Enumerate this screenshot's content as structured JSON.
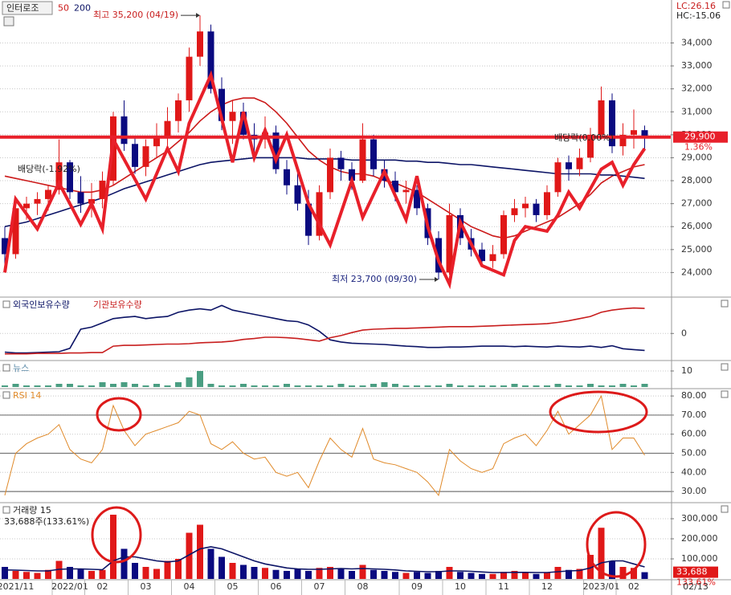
{
  "chart_data": [
    {
      "type": "candlestick",
      "title": "인터로조",
      "categories": [
        null,
        "2021/11",
        null,
        null,
        null,
        null,
        "2022/01",
        null,
        null,
        "02",
        null,
        null,
        null,
        "03",
        null,
        null,
        null,
        "04",
        null,
        null,
        null,
        "05",
        null,
        null,
        null,
        "06",
        null,
        null,
        null,
        "07",
        null,
        null,
        null,
        "08",
        null,
        null,
        null,
        null,
        "09",
        null,
        null,
        null,
        "10",
        null,
        null,
        null,
        "11",
        null,
        null,
        null,
        "12",
        null,
        null,
        null,
        null,
        "2023/01",
        null,
        null,
        "02",
        null
      ],
      "last_date": "02/13",
      "open": [
        25500,
        24800,
        26800,
        27000,
        27200,
        27600,
        28800,
        27500,
        27000,
        27200,
        28000,
        30800,
        29600,
        28600,
        29500,
        29900,
        30600,
        31500,
        33400,
        34500,
        32000,
        30600,
        31000,
        30000,
        29800,
        30100,
        28500,
        27800,
        27000,
        25600,
        27500,
        29000,
        28500,
        28000,
        29800,
        28500,
        28000,
        27500,
        27600,
        26800,
        25500,
        24000,
        26500,
        25500,
        25000,
        24500,
        24800,
        26500,
        26800,
        27000,
        26500,
        27500,
        28800,
        28500,
        29000,
        30000,
        31500,
        29500,
        30000,
        30200
      ],
      "high": [
        26000,
        27000,
        27300,
        27500,
        27800,
        29800,
        28900,
        28200,
        27900,
        28400,
        31000,
        31500,
        29900,
        29800,
        30500,
        31200,
        31800,
        33800,
        35200,
        34800,
        32500,
        31500,
        31400,
        30500,
        30800,
        30400,
        28900,
        28600,
        27600,
        27800,
        29400,
        29300,
        28800,
        30500,
        30000,
        28900,
        28400,
        28000,
        27800,
        27000,
        25800,
        27000,
        26800,
        25900,
        25300,
        25200,
        26700,
        27200,
        27300,
        27200,
        27800,
        29000,
        29100,
        29400,
        30300,
        32100,
        31800,
        30500,
        31100,
        30400
      ],
      "low": [
        24200,
        24600,
        26300,
        26500,
        26700,
        27400,
        27200,
        26600,
        26400,
        26800,
        27800,
        29300,
        28300,
        28200,
        29000,
        29400,
        30100,
        31000,
        33000,
        31800,
        30200,
        29600,
        29800,
        29200,
        29400,
        28300,
        27400,
        26700,
        25200,
        25400,
        27200,
        28000,
        27600,
        27900,
        28200,
        27700,
        27100,
        27000,
        26500,
        25200,
        23700,
        23900,
        25200,
        24700,
        24300,
        24200,
        24600,
        26200,
        26400,
        26200,
        26300,
        27300,
        28000,
        28200,
        28800,
        29800,
        29200,
        29100,
        29400,
        29300
      ],
      "close": [
        24800,
        26800,
        27000,
        27200,
        27600,
        28800,
        27500,
        27000,
        27200,
        28000,
        30800,
        29600,
        28600,
        29500,
        29900,
        30600,
        31500,
        33400,
        34500,
        32000,
        30600,
        31000,
        30000,
        29800,
        30100,
        28500,
        27800,
        27000,
        25600,
        27500,
        29000,
        28500,
        28000,
        29800,
        28500,
        28000,
        27500,
        27600,
        26800,
        25500,
        24000,
        26500,
        25500,
        25000,
        24500,
        24800,
        26500,
        26800,
        27000,
        26500,
        27500,
        28800,
        28500,
        29000,
        30000,
        31500,
        29500,
        30000,
        30200,
        29900
      ],
      "up_color": "#e01818",
      "down_color": "#0a0a80",
      "series": [
        {
          "name": "50",
          "color": "#cc1a1a",
          "values": [
            28200,
            28100,
            28000,
            27900,
            27800,
            27700,
            27600,
            27500,
            27500,
            27600,
            27800,
            28100,
            28400,
            28700,
            29000,
            29300,
            29700,
            30100,
            30600,
            31000,
            31300,
            31500,
            31600,
            31600,
            31400,
            31000,
            30500,
            29900,
            29300,
            28900,
            28600,
            28400,
            28300,
            28300,
            28200,
            28000,
            27900,
            27700,
            27500,
            27200,
            26900,
            26600,
            26300,
            26000,
            25800,
            25600,
            25500,
            25600,
            25800,
            26000,
            26200,
            26400,
            26700,
            27000,
            27400,
            27900,
            28200,
            28400,
            28600,
            28700
          ]
        },
        {
          "name": "200",
          "color": "#0c1466",
          "values": [
            26000,
            26100,
            26200,
            26350,
            26500,
            26650,
            26800,
            26950,
            27100,
            27250,
            27450,
            27650,
            27800,
            27950,
            28100,
            28250,
            28400,
            28550,
            28700,
            28800,
            28850,
            28900,
            28950,
            29000,
            29000,
            29000,
            29000,
            29000,
            28950,
            28950,
            28950,
            28950,
            28900,
            28900,
            28900,
            28900,
            28900,
            28850,
            28850,
            28800,
            28800,
            28750,
            28700,
            28700,
            28650,
            28600,
            28550,
            28500,
            28450,
            28400,
            28350,
            28300,
            28300,
            28300,
            28300,
            28250,
            28250,
            28200,
            28150,
            28100
          ]
        }
      ],
      "trend": {
        "color": "#e8202a",
        "x": [
          0,
          1,
          3,
          5,
          7,
          8,
          9,
          10,
          13,
          15,
          16,
          17,
          19,
          21,
          22,
          23,
          24,
          25,
          26,
          28,
          30,
          32,
          33,
          35,
          37,
          38,
          39,
          40,
          41,
          42,
          44,
          46,
          47,
          48,
          50,
          51,
          52,
          53,
          55,
          56,
          57,
          58,
          59
        ],
        "values": [
          24000,
          27200,
          25900,
          27900,
          26100,
          27000,
          25900,
          29800,
          27200,
          29400,
          28400,
          30500,
          32600,
          28800,
          31000,
          29000,
          30200,
          28900,
          30000,
          27000,
          25200,
          28000,
          26400,
          28400,
          26300,
          28200,
          26000,
          24500,
          23500,
          26200,
          24300,
          23900,
          25400,
          26000,
          25800,
          26500,
          27500,
          26800,
          28500,
          28800,
          27800,
          28700,
          29400
        ]
      },
      "hline": {
        "value": 29900,
        "label": "29,900",
        "change": "1.36%",
        "color": "#e8202a"
      },
      "annotations": [
        {
          "text": "최고 35,200 (04/19)",
          "x": 18,
          "value": 35200
        },
        {
          "text": "최저 23,700 (09/30)",
          "x": 40,
          "value": 23700
        }
      ],
      "notes": [
        "배당락(-1.92%)",
        "배당락(0.00%)"
      ],
      "corner_labels": [
        "LC:26.16",
        "HC:-15.06"
      ],
      "ylim": [
        23000,
        35800
      ],
      "yticks": [
        {
          "value": 24000,
          "label": "24,000"
        },
        {
          "value": 25000,
          "label": "25,000"
        },
        {
          "value": 26000,
          "label": "26,000"
        },
        {
          "value": 27000,
          "label": "27,000"
        },
        {
          "value": 28000,
          "label": "28,000"
        },
        {
          "value": 29000,
          "label": "29,000"
        },
        {
          "value": 30000,
          "label": "30,000"
        },
        {
          "value": 31000,
          "label": "31,000"
        },
        {
          "value": 32000,
          "label": "32,000"
        },
        {
          "value": 33000,
          "label": "33,000"
        },
        {
          "value": 34000,
          "label": "34,000"
        }
      ],
      "grid": true
    },
    {
      "type": "line",
      "series": [
        {
          "name": "외국인보유수량",
          "color": "#0c1466",
          "values": [
            -4.4,
            -4.6,
            -4.6,
            -4.5,
            -4.4,
            -4.3,
            -3.5,
            1.0,
            1.5,
            2.5,
            3.5,
            3.8,
            4.0,
            3.5,
            3.8,
            4.0,
            5.0,
            5.5,
            5.8,
            5.5,
            6.6,
            5.5,
            5.0,
            4.5,
            4.0,
            3.5,
            3.0,
            2.8,
            2.0,
            0.5,
            -1.5,
            -2.0,
            -2.3,
            -2.4,
            -2.5,
            -2.6,
            -2.8,
            -3.0,
            -3.1,
            -3.3,
            -3.3,
            -3.2,
            -3.2,
            -3.1,
            -3.0,
            -3.0,
            -3.0,
            -3.1,
            -3.0,
            -3.1,
            -3.2,
            -3.0,
            -3.1,
            -3.2,
            -3.0,
            -3.3,
            -2.9,
            -3.6,
            -3.8,
            -4.0
          ]
        },
        {
          "name": "기관보유수량",
          "color": "#c81e1e",
          "values": [
            -4.8,
            -4.8,
            -4.8,
            -4.7,
            -4.7,
            -4.7,
            -4.6,
            -4.6,
            -4.5,
            -4.5,
            -3.0,
            -2.8,
            -2.8,
            -2.7,
            -2.6,
            -2.5,
            -2.5,
            -2.4,
            -2.2,
            -2.1,
            -2.0,
            -1.8,
            -1.4,
            -1.2,
            -0.9,
            -0.9,
            -1.0,
            -1.2,
            -1.5,
            -1.8,
            -1.0,
            -0.5,
            0.2,
            0.8,
            1.0,
            1.1,
            1.2,
            1.2,
            1.3,
            1.4,
            1.5,
            1.6,
            1.6,
            1.6,
            1.7,
            1.8,
            1.9,
            2.0,
            2.1,
            2.2,
            2.3,
            2.6,
            3.0,
            3.5,
            4.0,
            5.0,
            5.5,
            5.8,
            6.0,
            5.9
          ]
        }
      ],
      "ylim": [
        -6,
        8
      ],
      "yticks": [
        0
      ],
      "grid": true
    },
    {
      "type": "bar",
      "title": "뉴스",
      "color": "#4a9e82",
      "values": [
        1,
        2,
        1,
        1,
        1,
        2,
        2,
        1,
        1,
        3,
        2,
        3,
        2,
        1,
        2,
        1,
        3,
        6,
        10,
        2,
        1,
        1,
        2,
        1,
        1,
        1,
        2,
        1,
        1,
        1,
        1,
        2,
        1,
        1,
        2,
        3,
        2,
        1,
        1,
        1,
        1,
        2,
        1,
        1,
        1,
        1,
        1,
        2,
        1,
        1,
        1,
        2,
        1,
        1,
        2,
        1,
        1,
        2,
        1,
        2
      ],
      "ylim": [
        0,
        15
      ],
      "yticks": [
        10
      ],
      "grid": true
    },
    {
      "type": "line",
      "title": "RSI 14",
      "color": "#e08a2a",
      "values": [
        28,
        50,
        55,
        58,
        60,
        65,
        52,
        47,
        45,
        52,
        75,
        62,
        54,
        60,
        62,
        64,
        66,
        72,
        70,
        55,
        52,
        56,
        50,
        47,
        48,
        40,
        38,
        40,
        32,
        46,
        58,
        52,
        48,
        63,
        47,
        45,
        44,
        42,
        40,
        35,
        28,
        52,
        46,
        42,
        40,
        42,
        55,
        58,
        60,
        54,
        62,
        72,
        60,
        65,
        70,
        80,
        52,
        58,
        58,
        49
      ],
      "guides": [
        30,
        50,
        70
      ],
      "ylim": [
        25,
        83
      ],
      "yticks": [
        {
          "value": 30,
          "label": "30.00"
        },
        {
          "value": 40,
          "label": "40.00"
        },
        {
          "value": 50,
          "label": "50.00"
        },
        {
          "value": 60,
          "label": "60.00"
        },
        {
          "value": 70,
          "label": "70.00"
        },
        {
          "value": 80,
          "label": "80.00"
        }
      ],
      "grid": true
    },
    {
      "type": "bar",
      "title": "거래량  15",
      "subtitle": "33,688주(133.61%)",
      "values": [
        60000,
        40000,
        35000,
        30000,
        45000,
        90000,
        60000,
        50000,
        40000,
        45000,
        320000,
        150000,
        80000,
        60000,
        50000,
        90000,
        100000,
        230000,
        270000,
        150000,
        110000,
        80000,
        70000,
        60000,
        55000,
        45000,
        40000,
        50000,
        40000,
        55000,
        60000,
        50000,
        40000,
        70000,
        45000,
        40000,
        35000,
        30000,
        35000,
        30000,
        40000,
        60000,
        35000,
        30000,
        25000,
        25000,
        35000,
        40000,
        30000,
        25000,
        30000,
        60000,
        45000,
        50000,
        120000,
        255000,
        90000,
        60000,
        55000,
        33688
      ],
      "ma_values": [
        45000,
        44000,
        42000,
        40000,
        40000,
        48000,
        50000,
        50000,
        48000,
        46000,
        90000,
        110000,
        110000,
        100000,
        90000,
        85000,
        90000,
        120000,
        150000,
        160000,
        150000,
        130000,
        110000,
        90000,
        75000,
        65000,
        55000,
        50000,
        48000,
        48000,
        50000,
        52000,
        50000,
        52000,
        50000,
        48000,
        45000,
        40000,
        38000,
        36000,
        36000,
        40000,
        40000,
        38000,
        35000,
        32000,
        32000,
        33000,
        33000,
        32000,
        32000,
        36000,
        40000,
        42000,
        55000,
        80000,
        90000,
        90000,
        75000,
        60000
      ],
      "ma_color": "#0c1466",
      "last_label": "33,688",
      "last_change": "133.61%",
      "ylim": [
        0,
        364000
      ],
      "yticks": [
        {
          "value": 100000,
          "label": "100,000"
        },
        {
          "value": 200000,
          "label": "200,000"
        },
        {
          "value": 300000,
          "label": "300,000"
        }
      ],
      "grid": true
    }
  ]
}
